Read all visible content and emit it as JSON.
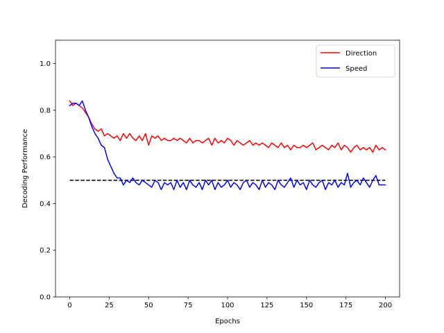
{
  "chart_data": {
    "type": "line",
    "title": "",
    "xlabel": "Epochs",
    "ylabel": "Decoding Performance",
    "xlim": [
      -9,
      209
    ],
    "ylim": [
      0.0,
      1.1
    ],
    "xticks": [
      0,
      25,
      50,
      75,
      100,
      125,
      150,
      175,
      200
    ],
    "yticks": [
      0.0,
      0.2,
      0.4,
      0.6,
      0.8,
      1.0
    ],
    "xtick_labels": [
      "0",
      "25",
      "50",
      "75",
      "100",
      "125",
      "150",
      "175",
      "200"
    ],
    "ytick_labels": [
      "0.0",
      "0.2",
      "0.4",
      "0.6",
      "0.8",
      "1.0"
    ],
    "grid": false,
    "legend_position": "top-right",
    "series": [
      {
        "name": "Direction",
        "color": "#ff0000",
        "x": [
          0,
          2,
          4,
          6,
          8,
          10,
          12,
          14,
          16,
          18,
          20,
          22,
          24,
          26,
          28,
          30,
          32,
          34,
          36,
          38,
          40,
          42,
          44,
          46,
          48,
          50,
          52,
          54,
          56,
          58,
          60,
          62,
          64,
          66,
          68,
          70,
          72,
          74,
          76,
          78,
          80,
          82,
          84,
          86,
          88,
          90,
          92,
          94,
          96,
          98,
          100,
          102,
          104,
          106,
          108,
          110,
          112,
          114,
          116,
          118,
          120,
          122,
          124,
          126,
          128,
          130,
          132,
          134,
          136,
          138,
          140,
          142,
          144,
          146,
          148,
          150,
          152,
          154,
          156,
          158,
          160,
          162,
          164,
          166,
          168,
          170,
          172,
          174,
          176,
          178,
          180,
          182,
          184,
          186,
          188,
          190,
          192,
          194,
          196,
          198,
          200
        ],
        "values": [
          0.84,
          0.82,
          0.83,
          0.82,
          0.81,
          0.79,
          0.77,
          0.74,
          0.72,
          0.71,
          0.72,
          0.69,
          0.7,
          0.69,
          0.68,
          0.69,
          0.67,
          0.7,
          0.68,
          0.7,
          0.68,
          0.67,
          0.69,
          0.67,
          0.7,
          0.65,
          0.69,
          0.68,
          0.69,
          0.67,
          0.68,
          0.67,
          0.67,
          0.68,
          0.67,
          0.68,
          0.67,
          0.66,
          0.68,
          0.66,
          0.67,
          0.67,
          0.66,
          0.67,
          0.68,
          0.65,
          0.68,
          0.66,
          0.67,
          0.66,
          0.68,
          0.67,
          0.65,
          0.67,
          0.66,
          0.65,
          0.66,
          0.67,
          0.65,
          0.66,
          0.65,
          0.66,
          0.65,
          0.64,
          0.66,
          0.65,
          0.64,
          0.66,
          0.64,
          0.65,
          0.63,
          0.65,
          0.64,
          0.64,
          0.65,
          0.64,
          0.65,
          0.66,
          0.63,
          0.64,
          0.65,
          0.64,
          0.63,
          0.65,
          0.64,
          0.66,
          0.63,
          0.65,
          0.64,
          0.62,
          0.64,
          0.65,
          0.63,
          0.64,
          0.63,
          0.64,
          0.62,
          0.65,
          0.63,
          0.64,
          0.63
        ]
      },
      {
        "name": "Speed",
        "color": "#0000ff",
        "x": [
          0,
          2,
          4,
          6,
          8,
          10,
          12,
          14,
          16,
          18,
          20,
          22,
          24,
          26,
          28,
          30,
          32,
          34,
          36,
          38,
          40,
          42,
          44,
          46,
          48,
          50,
          52,
          54,
          56,
          58,
          60,
          62,
          64,
          66,
          68,
          70,
          72,
          74,
          76,
          78,
          80,
          82,
          84,
          86,
          88,
          90,
          92,
          94,
          96,
          98,
          100,
          102,
          104,
          106,
          108,
          110,
          112,
          114,
          116,
          118,
          120,
          122,
          124,
          126,
          128,
          130,
          132,
          134,
          136,
          138,
          140,
          142,
          144,
          146,
          148,
          150,
          152,
          154,
          156,
          158,
          160,
          162,
          164,
          166,
          168,
          170,
          172,
          174,
          176,
          178,
          180,
          182,
          184,
          186,
          188,
          190,
          192,
          194,
          196,
          198,
          200
        ],
        "values": [
          0.82,
          0.83,
          0.83,
          0.82,
          0.84,
          0.8,
          0.77,
          0.73,
          0.7,
          0.68,
          0.65,
          0.64,
          0.59,
          0.56,
          0.53,
          0.51,
          0.51,
          0.48,
          0.5,
          0.49,
          0.51,
          0.49,
          0.48,
          0.5,
          0.49,
          0.48,
          0.47,
          0.5,
          0.49,
          0.46,
          0.49,
          0.48,
          0.49,
          0.46,
          0.5,
          0.47,
          0.49,
          0.46,
          0.5,
          0.48,
          0.47,
          0.49,
          0.46,
          0.5,
          0.48,
          0.5,
          0.46,
          0.49,
          0.47,
          0.48,
          0.5,
          0.47,
          0.49,
          0.48,
          0.46,
          0.49,
          0.5,
          0.47,
          0.49,
          0.48,
          0.46,
          0.5,
          0.47,
          0.49,
          0.48,
          0.46,
          0.5,
          0.48,
          0.47,
          0.49,
          0.51,
          0.47,
          0.5,
          0.48,
          0.49,
          0.46,
          0.5,
          0.48,
          0.47,
          0.49,
          0.5,
          0.46,
          0.49,
          0.48,
          0.5,
          0.47,
          0.49,
          0.48,
          0.53,
          0.47,
          0.49,
          0.5,
          0.48,
          0.51,
          0.49,
          0.47,
          0.5,
          0.52,
          0.48,
          0.48,
          0.48
        ]
      }
    ],
    "reference_line": {
      "y": 0.5,
      "x_start": 0,
      "x_end": 200,
      "color": "#000000",
      "style": "dashed"
    }
  }
}
